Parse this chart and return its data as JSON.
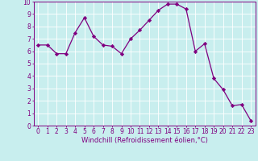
{
  "x": [
    0,
    1,
    2,
    3,
    4,
    5,
    6,
    7,
    8,
    9,
    10,
    11,
    12,
    13,
    14,
    15,
    16,
    17,
    18,
    19,
    20,
    21,
    22,
    23
  ],
  "y": [
    6.5,
    6.5,
    5.8,
    5.8,
    7.5,
    8.7,
    7.2,
    6.5,
    6.4,
    5.8,
    7.0,
    7.7,
    8.5,
    9.3,
    9.8,
    9.8,
    9.4,
    6.0,
    6.6,
    3.8,
    2.9,
    1.6,
    1.7,
    0.4
  ],
  "line_color": "#800080",
  "marker": "D",
  "marker_size": 2.2,
  "bg_color": "#c8eeee",
  "grid_color": "#ffffff",
  "xlabel": "Windchill (Refroidissement éolien,°C)",
  "xlim_min": -0.5,
  "xlim_max": 23.5,
  "ylim": [
    0,
    10
  ],
  "yticks": [
    0,
    1,
    2,
    3,
    4,
    5,
    6,
    7,
    8,
    9,
    10
  ],
  "xticks": [
    0,
    1,
    2,
    3,
    4,
    5,
    6,
    7,
    8,
    9,
    10,
    11,
    12,
    13,
    14,
    15,
    16,
    17,
    18,
    19,
    20,
    21,
    22,
    23
  ],
  "tick_color": "#800080",
  "label_color": "#800080",
  "axis_color": "#800080",
  "font_size": 5.5,
  "xlabel_fontsize": 6.0,
  "linewidth": 0.9
}
